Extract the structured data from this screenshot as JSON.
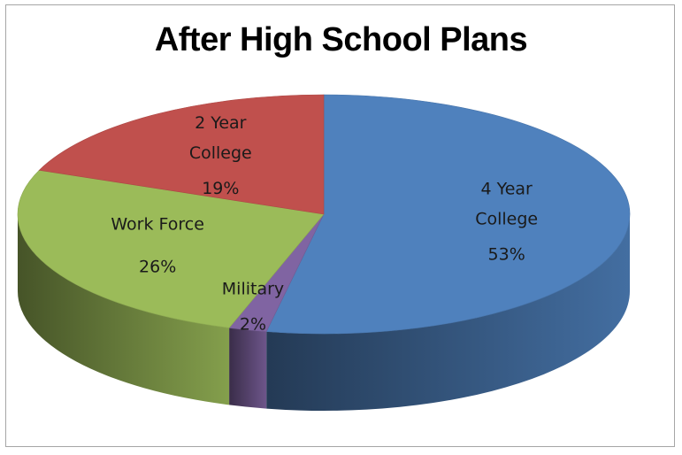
{
  "chart_data": {
    "type": "pie",
    "title": "After High School Plans",
    "slices": [
      {
        "name_lines": [
          "4 Year",
          "College"
        ],
        "value": 53,
        "label": "53%",
        "color": "#4f81bd"
      },
      {
        "name_lines": [
          "Military"
        ],
        "value": 2,
        "label": "2%",
        "color": "#8064a2"
      },
      {
        "name_lines": [
          "Work Force"
        ],
        "value": 26,
        "label": "26%",
        "color": "#9bbb59"
      },
      {
        "name_lines": [
          "2 Year",
          "College"
        ],
        "value": 19,
        "label": "19%",
        "color": "#c0504d"
      }
    ],
    "style": "3d",
    "legend": "none"
  }
}
